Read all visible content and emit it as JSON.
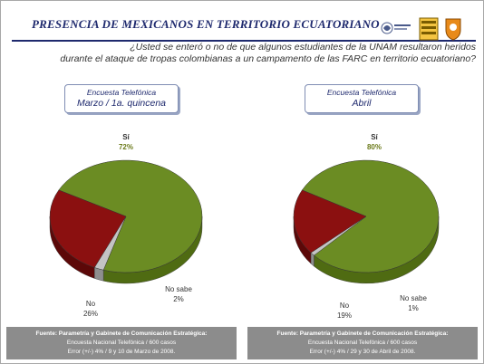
{
  "header": {
    "title": "PRESENCIA DE MEXICANOS EN TERRITORIO ECUATORIANO"
  },
  "question": {
    "line1": "¿Usted se enteró o no de que algunos estudiantes de la UNAM resultaron heridos",
    "line2": "durante el ataque de tropas colombianas a un campamento de las FARC en territorio ecuatoriano?"
  },
  "colors": {
    "si": "#6b8c23",
    "no": "#8b1010",
    "no_sabe": "#c4c4c4",
    "title": "#1f2a6e",
    "footer_bg": "#8c8c8c"
  },
  "chart_data": [
    {
      "type": "pie",
      "survey_label": "Encuesta Telefónica",
      "period": "Marzo / 1a. quincena",
      "slices": [
        {
          "label": "Sí",
          "value": 72,
          "value_label": "72%"
        },
        {
          "label": "No",
          "value": 26,
          "value_label": "26%"
        },
        {
          "label": "No sabe",
          "value": 2,
          "value_label": "2%"
        }
      ],
      "footer": {
        "line1": "Fuente: Parametría y Gabinete de Comunicación Estratégica:",
        "line2": "Encuesta Nacional Telefónica / 600 casos",
        "line3": "Error (+/-) 4% / 9 y 10 de Marzo de 2008."
      }
    },
    {
      "type": "pie",
      "survey_label": "Encuesta Telefónica",
      "period": "Abril",
      "slices": [
        {
          "label": "Sí",
          "value": 80,
          "value_label": "80%"
        },
        {
          "label": "No",
          "value": 19,
          "value_label": "19%"
        },
        {
          "label": "No sabe",
          "value": 1,
          "value_label": "1%"
        }
      ],
      "footer": {
        "line1": "Fuente: Parametría y Gabinete de Comunicación Estratégica:",
        "line2": "Encuesta Nacional Telefónica / 600 casos",
        "line3": "Error (+/-) 4% / 29 y 30 de Abril de 2008."
      }
    }
  ]
}
